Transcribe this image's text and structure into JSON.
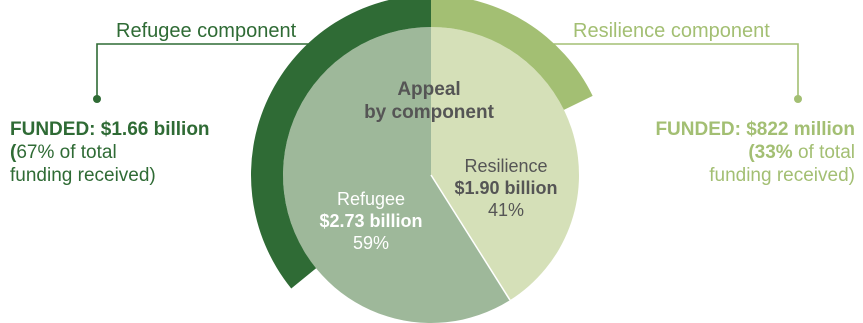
{
  "chart_data": {
    "type": "pie",
    "title_line1": "Appeal",
    "title_line2": "by component",
    "slices": [
      {
        "label": "Refugee",
        "amount": "$2.73 billion",
        "value": 2.73,
        "percent": 59,
        "percent_text": "59%",
        "color": "#9eb89a"
      },
      {
        "label": "Resilience",
        "amount": "$1.90 billion",
        "value": 1.9,
        "percent": 41,
        "percent_text": "41%",
        "color": "#d5e0b8"
      }
    ],
    "funding_arcs": [
      {
        "component": "Refugee",
        "funded_value_billion": 1.66,
        "color": "#2f6b35"
      },
      {
        "component": "Resilience",
        "funded_value_billion": 0.822,
        "color": "#a3bf73"
      }
    ]
  },
  "refugee_component": {
    "title": "Refugee component",
    "funded_label": "FUNDED:",
    "funded_amount": "$1.66 billion",
    "share_open": "(",
    "share_rest": "67% of total",
    "share_line2": "funding received)"
  },
  "resilience_component": {
    "title": "Resilience component",
    "funded_label": "FUNDED:",
    "funded_amount": "$822 million",
    "share_bold": "(33%",
    "share_rest": " of total",
    "share_line2": "funding received)"
  },
  "colors": {
    "refugee_dark": "#2f6b35",
    "resilience_light": "#a3bf73",
    "inner_text": "#ffffff",
    "center_text": "#555555"
  }
}
